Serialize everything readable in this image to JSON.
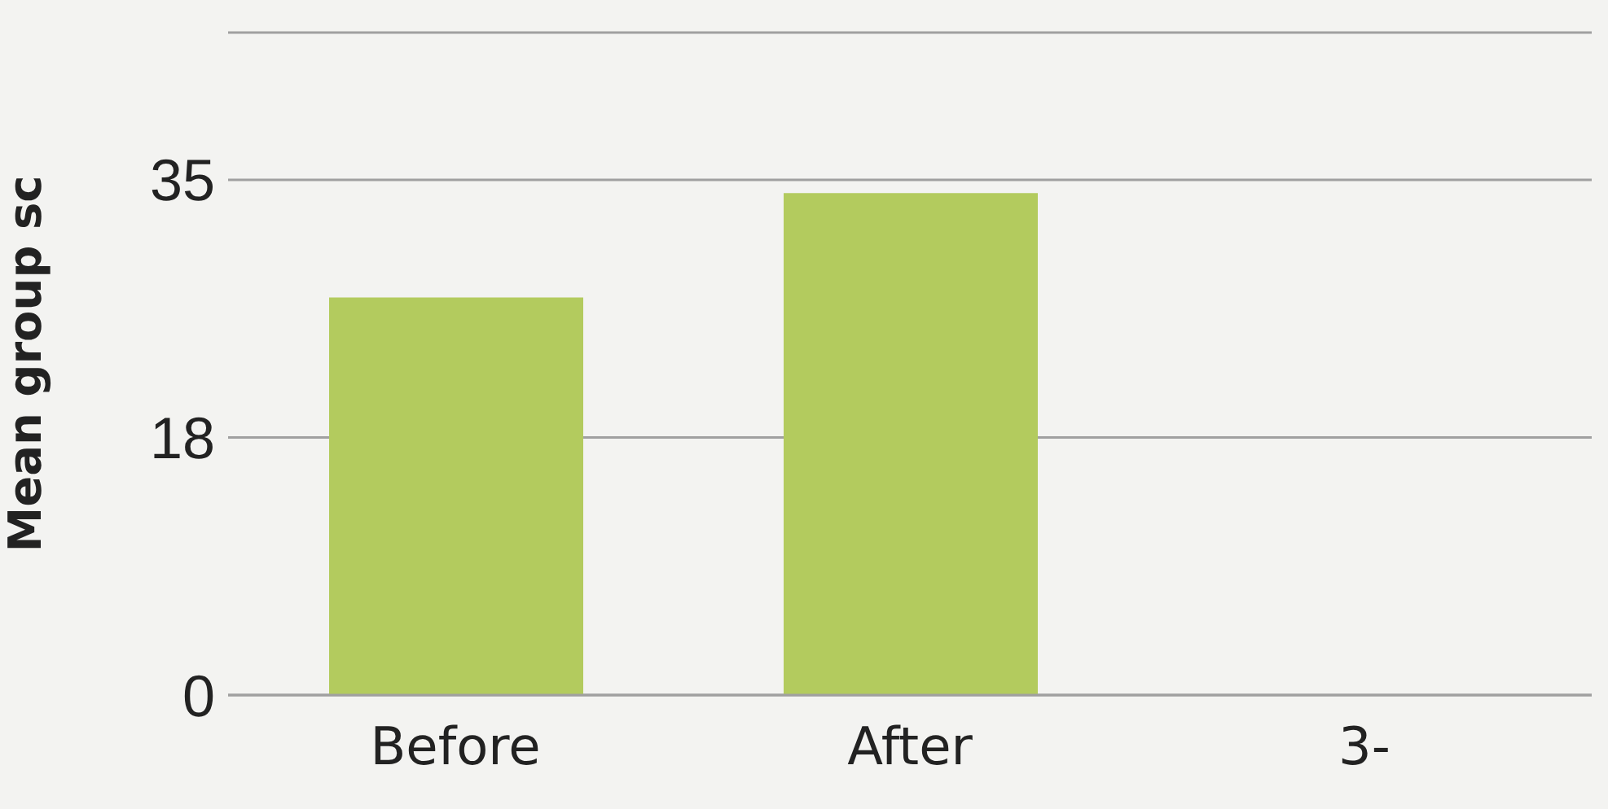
{
  "chart_data": {
    "type": "bar",
    "ylabel": "Mean group sc",
    "categories": [
      "Before",
      "After",
      "3-"
    ],
    "values": [
      27.0,
      34.1,
      null
    ],
    "color": "#b3cb5e",
    "ylim": [
      0,
      45
    ],
    "yticks": [
      0,
      {
        "value": 17.5,
        "label": "18"
      },
      35
    ],
    "grid": "y"
  }
}
